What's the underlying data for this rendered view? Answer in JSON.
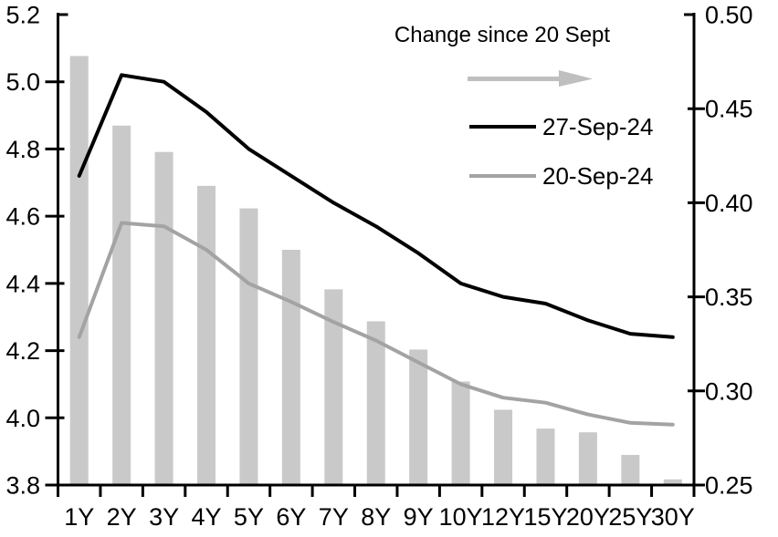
{
  "chart_data": {
    "type": "combo-bar-line",
    "categories": [
      "1Y",
      "2Y",
      "3Y",
      "4Y",
      "5Y",
      "6Y",
      "7Y",
      "8Y",
      "9Y",
      "10Y",
      "12Y",
      "15Y",
      "20Y",
      "25Y",
      "30Y"
    ],
    "series": [
      {
        "name": "27-Sep-24",
        "type": "line",
        "axis": "left",
        "color": "#000000",
        "values": [
          4.72,
          5.02,
          5.0,
          4.91,
          4.8,
          4.72,
          4.64,
          4.57,
          4.49,
          4.4,
          4.36,
          4.34,
          4.29,
          4.25,
          4.24
        ]
      },
      {
        "name": "20-Sep-24",
        "type": "line",
        "axis": "left",
        "color": "#a3a3a3",
        "values": [
          4.24,
          4.58,
          4.57,
          4.5,
          4.4,
          4.345,
          4.285,
          4.23,
          4.165,
          4.1,
          4.06,
          4.045,
          4.01,
          3.985,
          3.98
        ]
      },
      {
        "name": "Change since 20 Sept",
        "type": "bar",
        "axis": "right",
        "color": "#c9c9c9",
        "values": [
          0.478,
          0.441,
          0.427,
          0.409,
          0.397,
          0.375,
          0.354,
          0.337,
          0.322,
          0.305,
          0.29,
          0.28,
          0.278,
          0.266,
          0.253
        ]
      }
    ],
    "left_axis": {
      "min": 3.8,
      "max": 5.2,
      "tick_values": [
        5.2,
        5.0,
        4.8,
        4.6,
        4.4,
        4.2,
        4.0,
        3.8
      ],
      "tick_labels": [
        "5.2",
        "5.0",
        "4.8",
        "4.6",
        "4.4",
        "4.2",
        "4.0",
        "3.8"
      ]
    },
    "right_axis": {
      "min": 0.25,
      "max": 0.5,
      "tick_values": [
        0.5,
        0.45,
        0.4,
        0.35,
        0.3,
        0.25
      ],
      "tick_labels": [
        "0.50",
        "0.45",
        "0.40",
        "0.35",
        "0.30",
        "0.25"
      ]
    },
    "legend": {
      "title": "Change since 20 Sept",
      "arrow_color": "#bfbfbf",
      "entries": [
        {
          "label": "27-Sep-24",
          "color": "#000000"
        },
        {
          "label": "20-Sep-24",
          "color": "#a3a3a3"
        }
      ]
    },
    "grid": "off",
    "axis_color": "#000000",
    "text_color": "#000000"
  }
}
